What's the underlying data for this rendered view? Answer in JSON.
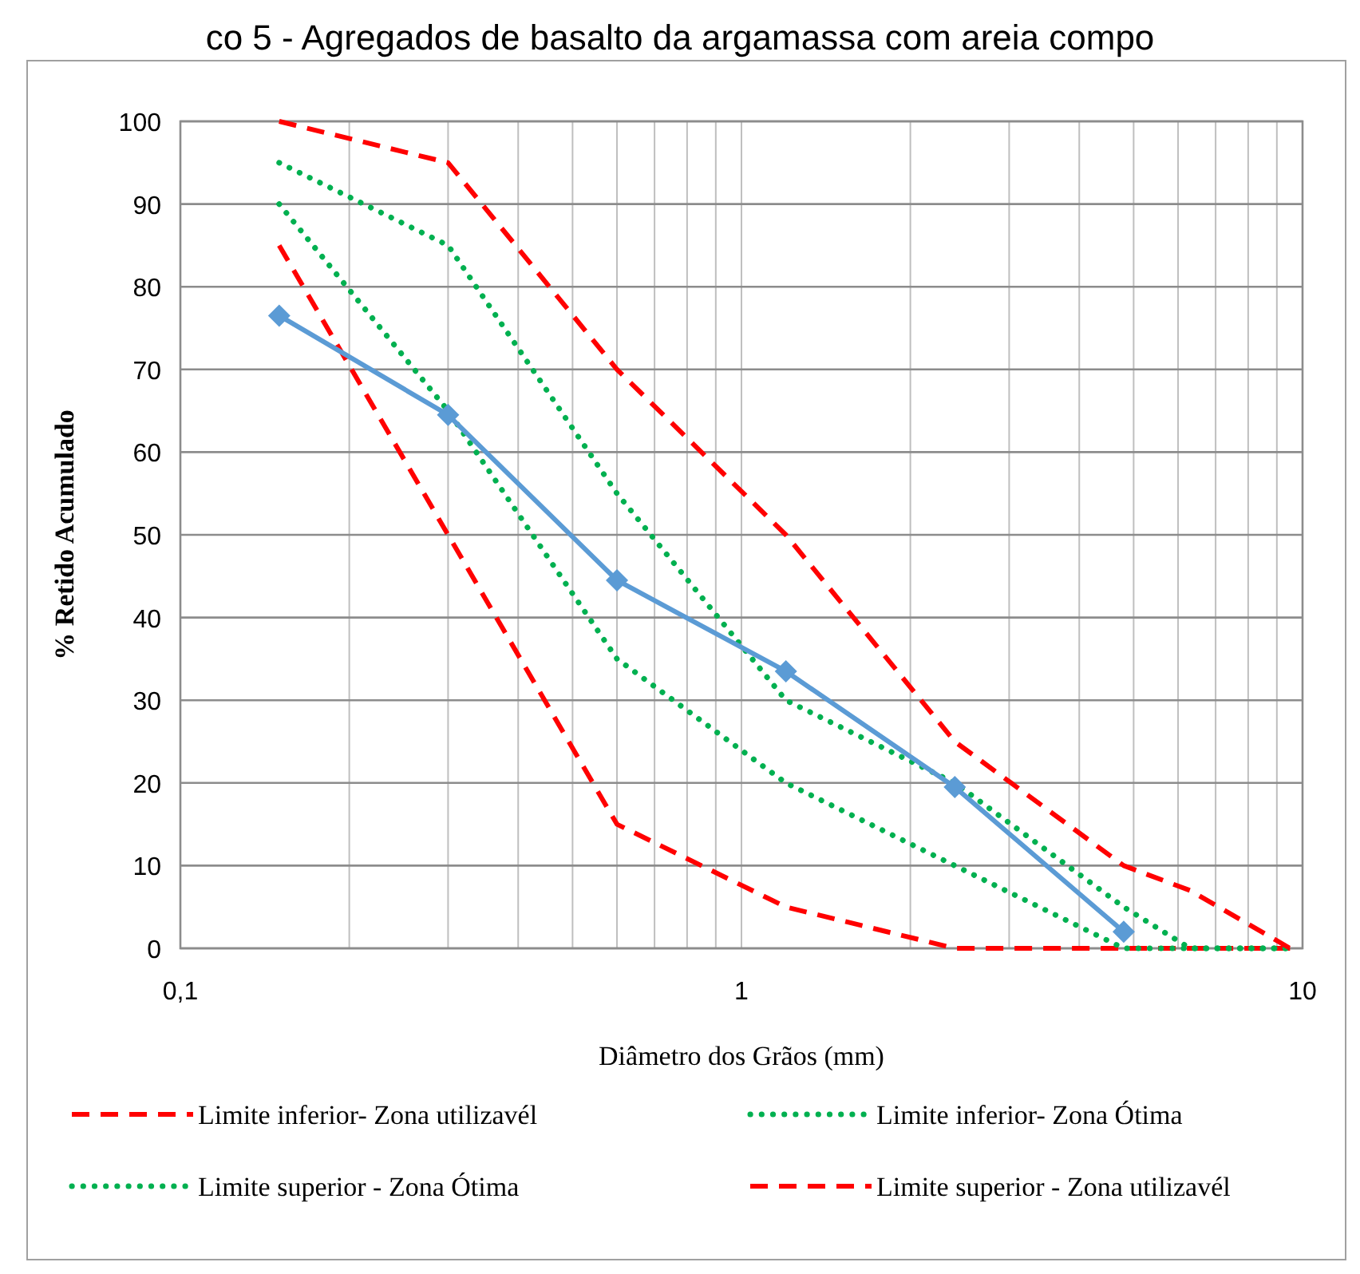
{
  "chart_data": {
    "type": "line",
    "title": "co 5 - Agregados de basalto da argamassa com areia compo",
    "xlabel": "Diâmetro dos Grãos (mm)",
    "ylabel": "% Retido Acumulado",
    "x": [
      0.15,
      0.3,
      0.6,
      1.2,
      2.4,
      4.8,
      6.3,
      9.5
    ],
    "series": [
      {
        "name": "Limite inferior- Zona utilizavél",
        "color": "#ff0000",
        "line_style": "dashed",
        "marker": "none",
        "values": [
          85,
          50,
          15,
          5,
          0,
          0,
          0,
          0
        ]
      },
      {
        "name": "Limite inferior- Zona Ótima",
        "color": "#00b050",
        "line_style": "dotted",
        "marker": "none",
        "values": [
          90,
          65,
          35,
          20,
          10,
          0,
          0,
          0
        ]
      },
      {
        "name": "Limite superior - Zona Ótima",
        "color": "#00b050",
        "line_style": "dotted",
        "marker": "none",
        "values": [
          95,
          85,
          55,
          30,
          20,
          5,
          0,
          0
        ]
      },
      {
        "name": "Limite superior - Zona utilizavél",
        "color": "#ff0000",
        "line_style": "dashed",
        "marker": "none",
        "values": [
          100,
          95,
          70,
          50,
          25,
          10,
          7,
          0
        ]
      },
      {
        "color": "#5b9bd5",
        "line_style": "solid",
        "marker": "diamond",
        "values": [
          76.5,
          64.5,
          44.5,
          33.5,
          19.5,
          2,
          null,
          null
        ]
      }
    ],
    "log": "x",
    "grid": true,
    "legend": "bottom",
    "xlim": [
      0.1,
      10
    ],
    "xticks": [
      {
        "value": 0.1,
        "label": "0,1"
      },
      {
        "value": 0.2,
        "label": null
      },
      {
        "value": 0.3,
        "label": null
      },
      {
        "value": 0.4,
        "label": null
      },
      {
        "value": 0.5,
        "label": null
      },
      {
        "value": 0.6,
        "label": null
      },
      {
        "value": 0.7,
        "label": null
      },
      {
        "value": 0.8,
        "label": null
      },
      {
        "value": 0.9,
        "label": null
      },
      1,
      {
        "value": 2,
        "label": null
      },
      {
        "value": 3,
        "label": null
      },
      {
        "value": 4,
        "label": null
      },
      {
        "value": 5,
        "label": null
      },
      {
        "value": 6,
        "label": null
      },
      {
        "value": 7,
        "label": null
      },
      {
        "value": 8,
        "label": null
      },
      {
        "value": 9,
        "label": null
      },
      10
    ],
    "ylim": [
      0,
      100
    ],
    "yticks": [
      0,
      10,
      20,
      30,
      40,
      50,
      60,
      70,
      80,
      90,
      100
    ]
  }
}
